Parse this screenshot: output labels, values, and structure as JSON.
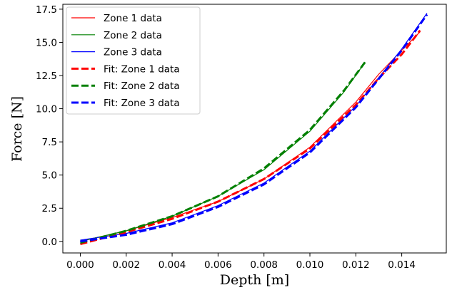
{
  "chart_data": {
    "type": "line",
    "title": "",
    "xlabel": "Depth [m]",
    "ylabel": "Force [N]",
    "xlim": [
      -0.00076,
      0.01594
    ],
    "ylim": [
      -0.87,
      17.87
    ],
    "xticks": [
      0.0,
      0.002,
      0.004,
      0.006,
      0.008,
      0.01,
      0.012,
      0.014
    ],
    "xtick_labels": [
      "0.000",
      "0.002",
      "0.004",
      "0.006",
      "0.008",
      "0.010",
      "0.012",
      "0.014"
    ],
    "yticks": [
      0.0,
      2.5,
      5.0,
      7.5,
      10.0,
      12.5,
      15.0,
      17.5
    ],
    "ytick_labels": [
      "0.0",
      "2.5",
      "5.0",
      "7.5",
      "10.0",
      "12.5",
      "15.0",
      "17.5"
    ],
    "grid": false,
    "legend_position": "upper-left",
    "series": [
      {
        "name": "Zone 1 data",
        "style": "solid",
        "color": "#ff0000",
        "x": [
          0.0,
          0.002,
          0.004,
          0.006,
          0.008,
          0.01,
          0.012,
          0.013,
          0.014,
          0.0148
        ],
        "y": [
          0.0,
          0.8,
          1.8,
          3.0,
          4.7,
          7.1,
          10.5,
          12.6,
          14.4,
          15.8
        ]
      },
      {
        "name": "Zone 2 data",
        "style": "solid",
        "color": "#008000",
        "x": [
          0.0,
          0.002,
          0.004,
          0.006,
          0.008,
          0.01,
          0.0115,
          0.0124
        ],
        "y": [
          0.0,
          0.8,
          1.9,
          3.4,
          5.4,
          8.3,
          11.3,
          13.5
        ]
      },
      {
        "name": "Zone 3 data",
        "style": "solid",
        "color": "#0000ff",
        "x": [
          0.0,
          0.002,
          0.004,
          0.006,
          0.008,
          0.01,
          0.012,
          0.014,
          0.0151
        ],
        "y": [
          0.1,
          0.6,
          1.4,
          2.7,
          4.4,
          6.8,
          10.2,
          14.5,
          17.2
        ]
      },
      {
        "name": "Fit: Zone 1 data",
        "style": "dashed",
        "color": "#ff0000",
        "x": [
          0.0,
          0.002,
          0.004,
          0.006,
          0.008,
          0.01,
          0.012,
          0.013,
          0.014,
          0.0148
        ],
        "y": [
          -0.2,
          0.7,
          1.7,
          3.0,
          4.7,
          7.0,
          10.3,
          12.3,
          14.1,
          15.9
        ]
      },
      {
        "name": "Fit: Zone 2 data",
        "style": "dashed",
        "color": "#008000",
        "x": [
          0.0,
          0.002,
          0.004,
          0.006,
          0.008,
          0.01,
          0.0115,
          0.0124
        ],
        "y": [
          -0.1,
          0.8,
          1.9,
          3.4,
          5.5,
          8.4,
          11.4,
          13.5
        ]
      },
      {
        "name": "Fit: Zone 3 data",
        "style": "dashed",
        "color": "#0000ff",
        "x": [
          0.0,
          0.002,
          0.004,
          0.006,
          0.008,
          0.01,
          0.012,
          0.014,
          0.0151
        ],
        "y": [
          0.0,
          0.5,
          1.3,
          2.6,
          4.3,
          6.7,
          10.1,
          14.4,
          17.1
        ]
      }
    ]
  }
}
